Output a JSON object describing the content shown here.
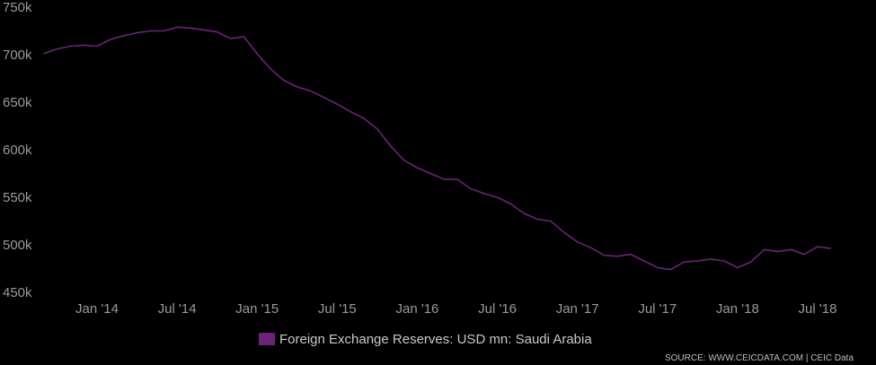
{
  "chart_data": {
    "type": "line",
    "title": "",
    "xlabel": "",
    "ylabel": "",
    "ylim": [
      450000,
      750000
    ],
    "y_ticks": [
      {
        "value": 750000,
        "label": "750k"
      },
      {
        "value": 700000,
        "label": "700k"
      },
      {
        "value": 650000,
        "label": "650k"
      },
      {
        "value": 600000,
        "label": "600k"
      },
      {
        "value": 550000,
        "label": "550k"
      },
      {
        "value": 500000,
        "label": "500k"
      },
      {
        "value": 450000,
        "label": "450k"
      }
    ],
    "x_ticks": [
      {
        "date": "2014-01",
        "label": "Jan '14"
      },
      {
        "date": "2014-07",
        "label": "Jul '14"
      },
      {
        "date": "2015-01",
        "label": "Jan '15"
      },
      {
        "date": "2015-07",
        "label": "Jul '15"
      },
      {
        "date": "2016-01",
        "label": "Jan '16"
      },
      {
        "date": "2016-07",
        "label": "Jul '16"
      },
      {
        "date": "2017-01",
        "label": "Jan '17"
      },
      {
        "date": "2017-07",
        "label": "Jul '17"
      },
      {
        "date": "2018-01",
        "label": "Jan '18"
      },
      {
        "date": "2018-07",
        "label": "Jul '18"
      }
    ],
    "x_range": [
      "2013-09",
      "2018-10"
    ],
    "grid": false,
    "legend_position": "bottom-center",
    "series": [
      {
        "name": "Foreign Exchange Reserves: USD mn: Saudi Arabia",
        "color": "#6b2377",
        "points": [
          [
            "2013-09",
            701000
          ],
          [
            "2013-10",
            706000
          ],
          [
            "2013-11",
            709000
          ],
          [
            "2013-12",
            710000
          ],
          [
            "2014-01",
            709000
          ],
          [
            "2014-02",
            716000
          ],
          [
            "2014-03",
            720000
          ],
          [
            "2014-04",
            723000
          ],
          [
            "2014-05",
            725000
          ],
          [
            "2014-06",
            725000
          ],
          [
            "2014-07",
            729000
          ],
          [
            "2014-08",
            728000
          ],
          [
            "2014-09",
            726000
          ],
          [
            "2014-10",
            724000
          ],
          [
            "2014-11",
            717000
          ],
          [
            "2014-12",
            719000
          ],
          [
            "2015-01",
            701000
          ],
          [
            "2015-02",
            685000
          ],
          [
            "2015-03",
            673000
          ],
          [
            "2015-04",
            666000
          ],
          [
            "2015-05",
            662000
          ],
          [
            "2015-06",
            655000
          ],
          [
            "2015-07",
            648000
          ],
          [
            "2015-08",
            640000
          ],
          [
            "2015-09",
            633000
          ],
          [
            "2015-10",
            622000
          ],
          [
            "2015-11",
            604000
          ],
          [
            "2015-12",
            589000
          ],
          [
            "2016-01",
            581000
          ],
          [
            "2016-02",
            575000
          ],
          [
            "2016-03",
            569000
          ],
          [
            "2016-04",
            569000
          ],
          [
            "2016-05",
            559000
          ],
          [
            "2016-06",
            554000
          ],
          [
            "2016-07",
            550000
          ],
          [
            "2016-08",
            543000
          ],
          [
            "2016-09",
            533000
          ],
          [
            "2016-10",
            527000
          ],
          [
            "2016-11",
            525000
          ],
          [
            "2016-12",
            513000
          ],
          [
            "2017-01",
            503000
          ],
          [
            "2017-02",
            497000
          ],
          [
            "2017-03",
            489000
          ],
          [
            "2017-04",
            488000
          ],
          [
            "2017-05",
            490000
          ],
          [
            "2017-06",
            483000
          ],
          [
            "2017-07",
            476000
          ],
          [
            "2017-08",
            474000
          ],
          [
            "2017-09",
            482000
          ],
          [
            "2017-10",
            483000
          ],
          [
            "2017-11",
            485000
          ],
          [
            "2017-12",
            483000
          ],
          [
            "2018-01",
            476000
          ],
          [
            "2018-02",
            482000
          ],
          [
            "2018-03",
            495000
          ],
          [
            "2018-04",
            493000
          ],
          [
            "2018-05",
            495000
          ],
          [
            "2018-06",
            490000
          ],
          [
            "2018-07",
            498000
          ],
          [
            "2018-08",
            496000
          ]
        ]
      }
    ]
  },
  "legend": {
    "label": "Foreign Exchange Reserves: USD mn: Saudi Arabia",
    "swatch_color": "#6b2377"
  },
  "source_text": "SOURCE: WWW.CEICDATA.COM | CEIC Data"
}
